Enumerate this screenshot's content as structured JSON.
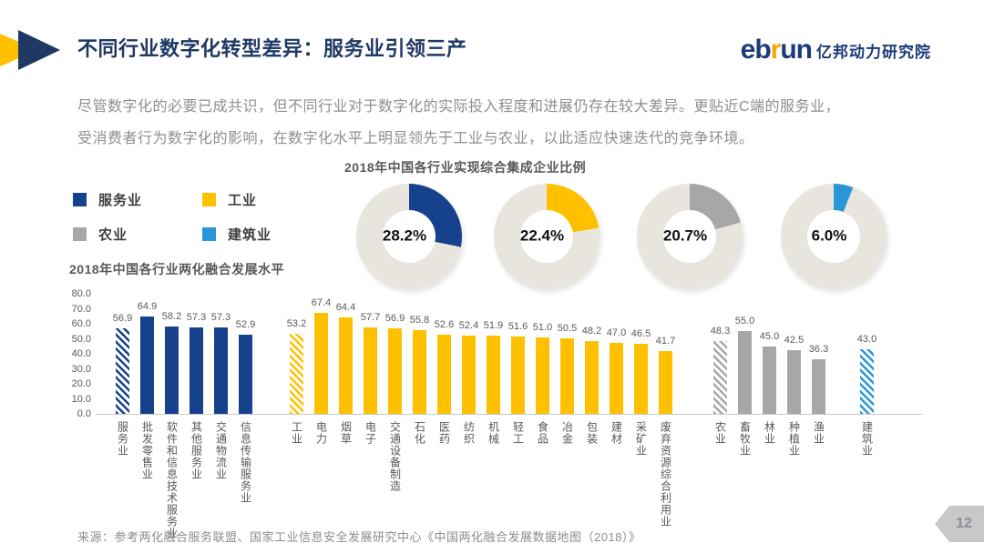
{
  "header": {
    "title": "不同行业数字化转型差异：服务业引领三产",
    "logo": {
      "eb": "eb",
      "r": "r",
      "un": "un",
      "name": "亿邦动力研究院"
    },
    "arrow_colors": {
      "yellow": "#FFC000",
      "blue": "#1F3864"
    }
  },
  "intro": {
    "line1": "尽管数字化的必要已成共识，但不同行业对于数字化的实际投入程度和进展仍存在较大差异。更贴近C端的服务业，",
    "line2": "受消费者行为数字化的影响，在数字化水平上明显领先于工业与农业，以此适应快速迭代的竞争环境。"
  },
  "legend": [
    {
      "label": "服务业",
      "color": "#16418C"
    },
    {
      "label": "工业",
      "color": "#FFC000"
    },
    {
      "label": "农业",
      "color": "#A7A7A7"
    },
    {
      "label": "建筑业",
      "color": "#2A96D8"
    }
  ],
  "chart_data": [
    {
      "type": "pie",
      "title": "2018年中国各行业实现综合集成企业比例",
      "rest_color": "#E8E5DE",
      "donuts": [
        {
          "label": "服务业",
          "value": 28.2,
          "display": "28.2%",
          "color": "#16418C"
        },
        {
          "label": "工业",
          "value": 22.4,
          "display": "22.4%",
          "color": "#FFC000"
        },
        {
          "label": "农业",
          "value": 20.7,
          "display": "20.7%",
          "color": "#A7A7A7"
        },
        {
          "label": "建筑业",
          "value": 6.0,
          "display": "6.0%",
          "color": "#2A96D8"
        }
      ]
    },
    {
      "type": "bar",
      "title": "2018年中国各行业两化融合发展水平",
      "xlabel": "",
      "ylabel": "",
      "ylim": [
        0,
        80
      ],
      "ytick_step": 10,
      "grid": false,
      "groups": [
        {
          "sector": "服务业",
          "color": "#16418C",
          "bars": [
            {
              "label": "服务业",
              "value": 56.9,
              "hatched": true
            },
            {
              "label": "批发零售业",
              "value": 64.9
            },
            {
              "label": "软件和信息技术服务业",
              "value": 58.2
            },
            {
              "label": "其他服务业",
              "value": 57.3
            },
            {
              "label": "交通物流业",
              "value": 57.3
            },
            {
              "label": "信息传输服务业",
              "value": 52.9
            }
          ]
        },
        {
          "sector": "工业",
          "color": "#FFC000",
          "bars": [
            {
              "label": "工业",
              "value": 53.2,
              "hatched": true
            },
            {
              "label": "电力",
              "value": 67.4
            },
            {
              "label": "烟草",
              "value": 64.4
            },
            {
              "label": "电子",
              "value": 57.7
            },
            {
              "label": "交通设备制造",
              "value": 56.9
            },
            {
              "label": "石化",
              "value": 55.8
            },
            {
              "label": "医药",
              "value": 52.6
            },
            {
              "label": "纺织",
              "value": 52.4
            },
            {
              "label": "机械",
              "value": 51.9
            },
            {
              "label": "轻工",
              "value": 51.6
            },
            {
              "label": "食品",
              "value": 51.0
            },
            {
              "label": "冶金",
              "value": 50.5
            },
            {
              "label": "包装",
              "value": 48.2
            },
            {
              "label": "建材",
              "value": 47.0
            },
            {
              "label": "采矿业",
              "value": 46.5
            },
            {
              "label": "废弃资源综合利用业",
              "value": 41.7
            }
          ]
        },
        {
          "sector": "农业",
          "color": "#A7A7A7",
          "bars": [
            {
              "label": "农业",
              "value": 48.3,
              "hatched": true
            },
            {
              "label": "畜牧业",
              "value": 55.0
            },
            {
              "label": "林业",
              "value": 45.0
            },
            {
              "label": "种植业",
              "value": 42.5
            },
            {
              "label": "渔业",
              "value": 36.3
            }
          ]
        },
        {
          "sector": "建筑业",
          "color": "#2A96D8",
          "bars": [
            {
              "label": "建筑业",
              "value": 43.0,
              "hatched": true
            }
          ]
        }
      ]
    }
  ],
  "source": "来源：参考两化融合服务联盟、国家工业信息安全发展研究中心《中国两化融合发展数据地图（2018）》",
  "page_number": "12"
}
